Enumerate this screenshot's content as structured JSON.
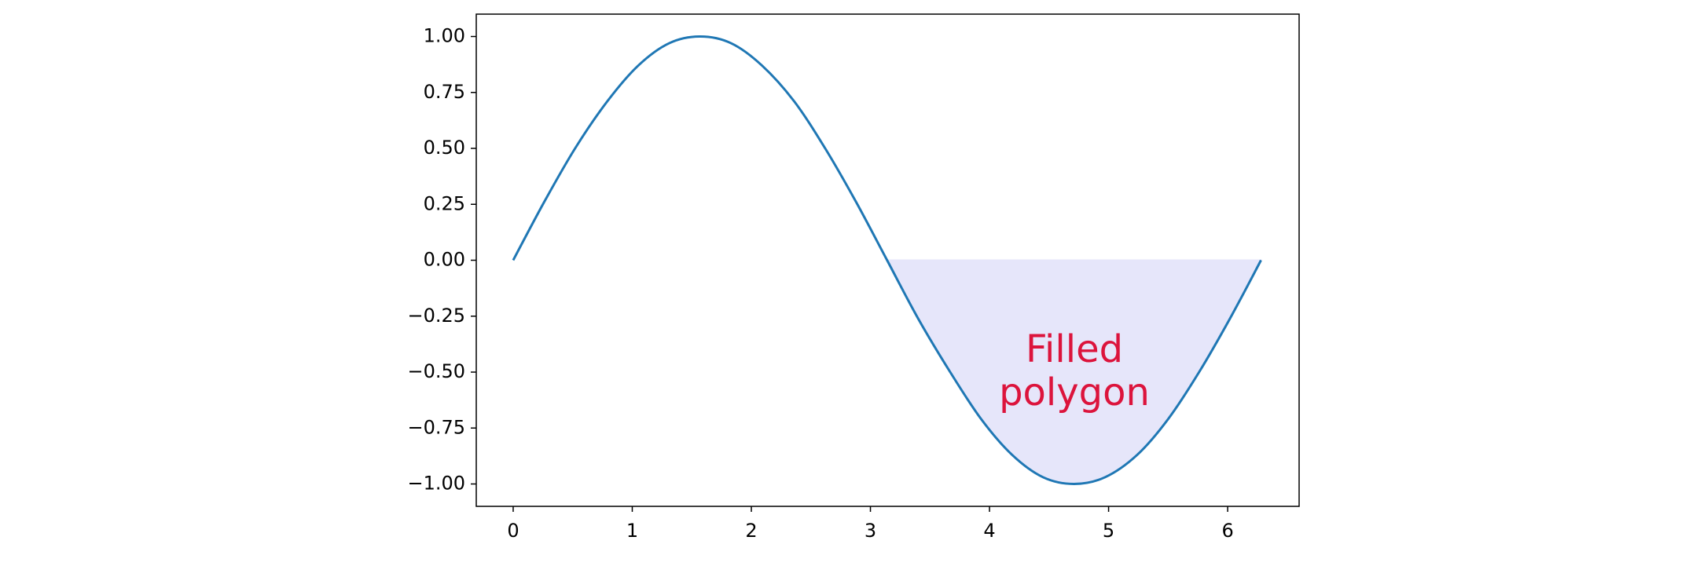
{
  "chart_data": {
    "type": "line",
    "x": [
      0,
      0.26,
      0.52,
      0.79,
      1.05,
      1.31,
      1.57,
      1.83,
      2.09,
      2.36,
      2.62,
      2.88,
      3.14,
      3.4,
      3.67,
      3.93,
      4.19,
      4.45,
      4.71,
      4.97,
      5.24,
      5.5,
      5.76,
      6.02,
      6.28
    ],
    "series": [
      {
        "color": "#1f77b4",
        "values": [
          0,
          0.26,
          0.5,
          0.71,
          0.87,
          0.97,
          1,
          0.97,
          0.87,
          0.71,
          0.5,
          0.26,
          0,
          -0.26,
          -0.5,
          -0.71,
          -0.87,
          -0.97,
          -1,
          -0.97,
          -0.87,
          -0.71,
          -0.5,
          -0.26,
          0
        ]
      }
    ],
    "fill": {
      "color": "#e6e6fa",
      "x": [
        3.14,
        3.4,
        3.67,
        3.93,
        4.19,
        4.45,
        4.71,
        4.97,
        5.24,
        5.5,
        5.76,
        6.02,
        6.28
      ],
      "values": [
        0,
        -0.26,
        -0.5,
        -0.71,
        -0.87,
        -0.97,
        -1,
        -0.97,
        -0.87,
        -0.71,
        -0.5,
        -0.26,
        0
      ]
    },
    "annotation": {
      "lines": [
        "Filled",
        "polygon"
      ],
      "color": "#dc143c"
    },
    "xlim": [
      -0.31,
      6.6
    ],
    "ylim": [
      -1.1,
      1.1
    ],
    "xticks": [
      0,
      1,
      2,
      3,
      4,
      5,
      6
    ],
    "yticks": [
      {
        "value": -1,
        "label": "−1.00"
      },
      {
        "value": -0.75,
        "label": "−0.75"
      },
      {
        "value": -0.5,
        "label": "−0.50"
      },
      {
        "value": -0.25,
        "label": "−0.25"
      },
      {
        "value": 0,
        "label": "0.00"
      },
      {
        "value": 0.25,
        "label": "0.25"
      },
      {
        "value": 0.5,
        "label": "0.50"
      },
      {
        "value": 0.75,
        "label": "0.75"
      },
      {
        "value": 1,
        "label": "1.00"
      }
    ],
    "grid": false
  }
}
